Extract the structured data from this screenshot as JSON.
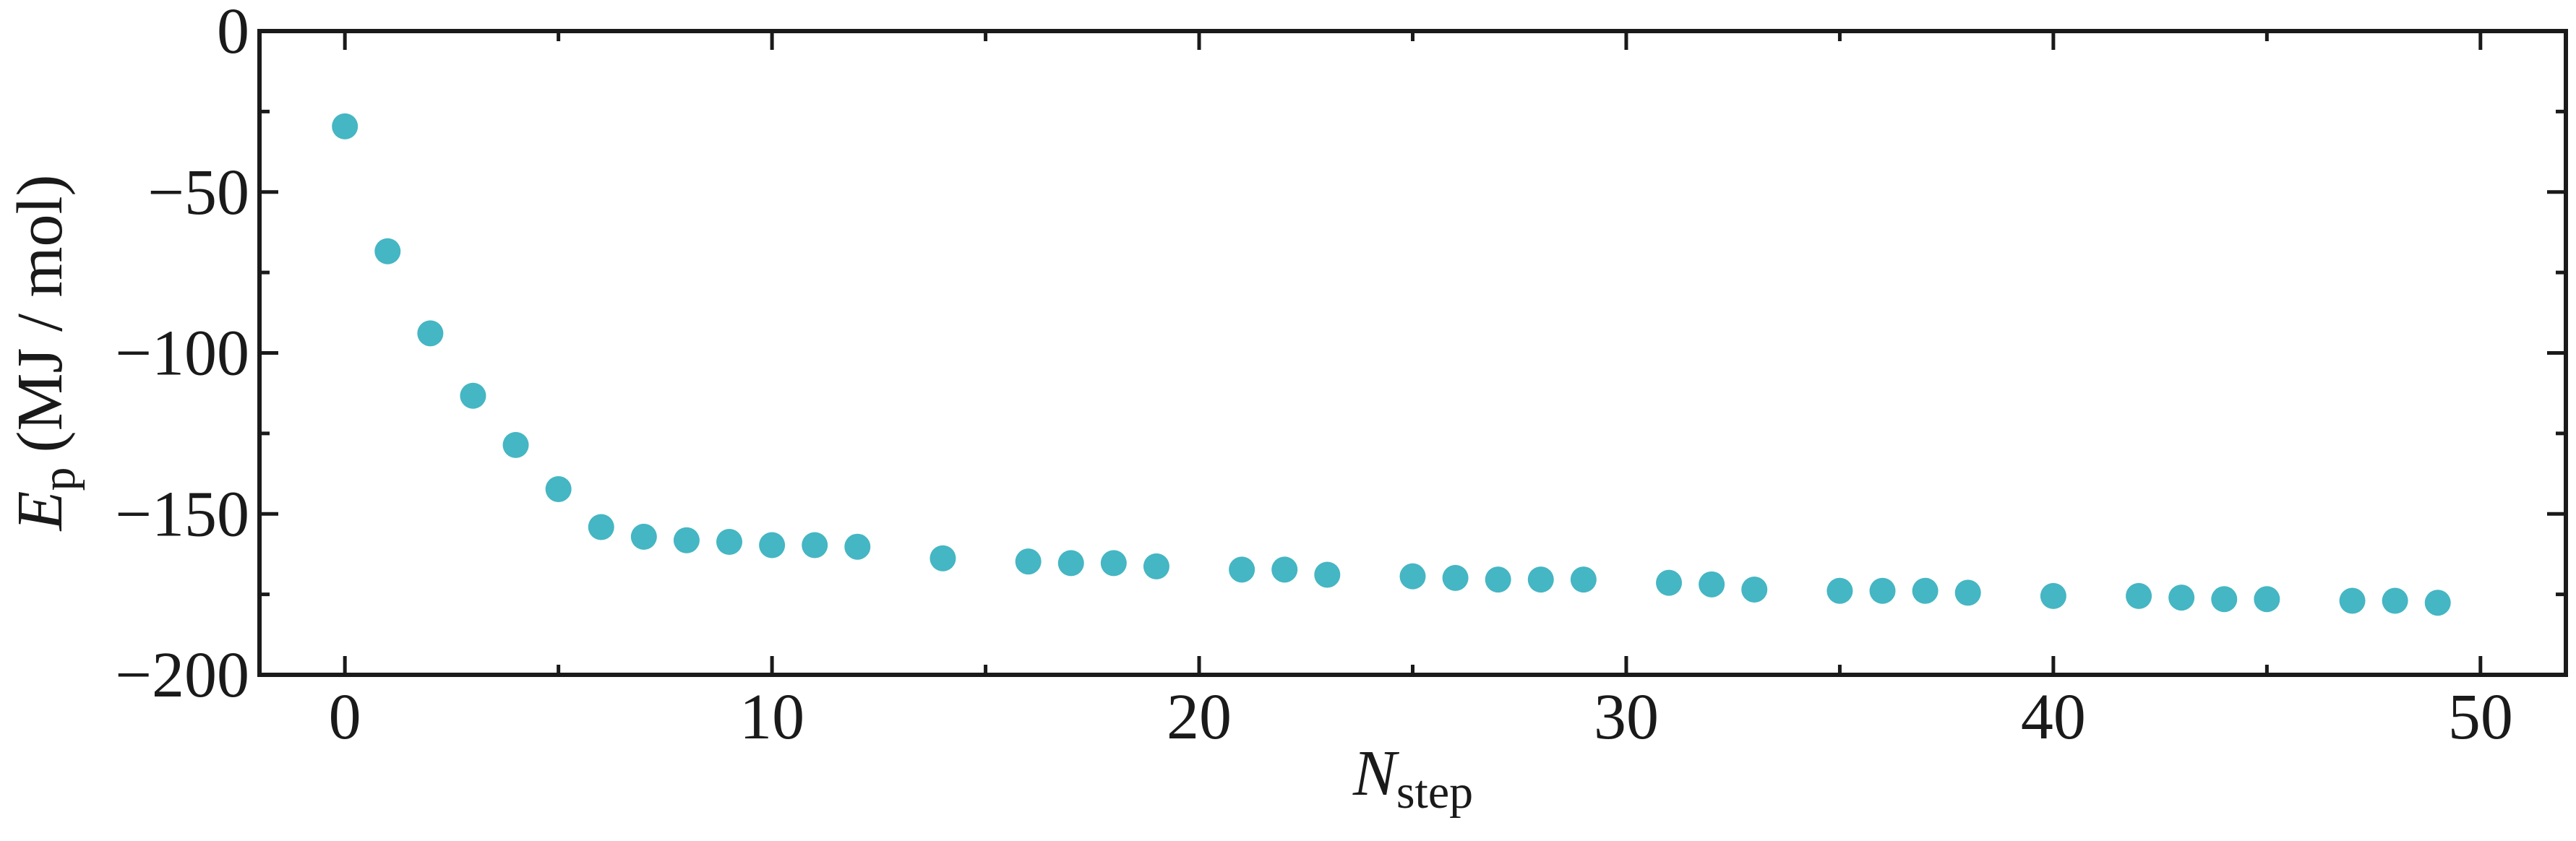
{
  "chart_data": {
    "type": "scatter",
    "x_label": {
      "main": "N",
      "sub": "step"
    },
    "y_label": {
      "main": "E",
      "sub": "p",
      "unit": "(MJ / mol)"
    },
    "color": "#45b6c3",
    "x": [
      0,
      1,
      2,
      3,
      4,
      5,
      6,
      7,
      8,
      9,
      10,
      11,
      12,
      14,
      16,
      17,
      18,
      19,
      21,
      22,
      23,
      25,
      26,
      27,
      28,
      29,
      31,
      32,
      33,
      35,
      36,
      37,
      38,
      40,
      42,
      43,
      44,
      45,
      47,
      48,
      49
    ],
    "values": [
      -29.6,
      -68.4,
      -93.9,
      -113.3,
      -128.6,
      -142.3,
      -154.1,
      -157.1,
      -158.2,
      -158.7,
      -159.7,
      -159.7,
      -160.2,
      -163.8,
      -164.8,
      -165.3,
      -165.3,
      -166.3,
      -167.3,
      -167.3,
      -168.9,
      -169.4,
      -169.9,
      -170.4,
      -170.4,
      -170.4,
      -171.4,
      -171.9,
      -173.5,
      -173.9,
      -173.9,
      -173.9,
      -174.5,
      -175.5,
      -175.5,
      -176,
      -176.5,
      -176.5,
      -177,
      -177,
      -177.6
    ],
    "xlim": [
      -2,
      52
    ],
    "ylim": [
      -200,
      0
    ],
    "xticks": [
      0,
      10,
      20,
      30,
      40,
      50
    ],
    "yticks": [
      {
        "value": -200,
        "label": "−200"
      },
      {
        "value": -150,
        "label": "−150"
      },
      {
        "value": -100,
        "label": "−100"
      },
      {
        "value": -50,
        "label": "−50"
      },
      0
    ],
    "xminorticks": [
      5,
      15,
      25,
      35,
      45
    ],
    "yminorticks": [
      -175,
      -125,
      -75,
      -25
    ]
  }
}
